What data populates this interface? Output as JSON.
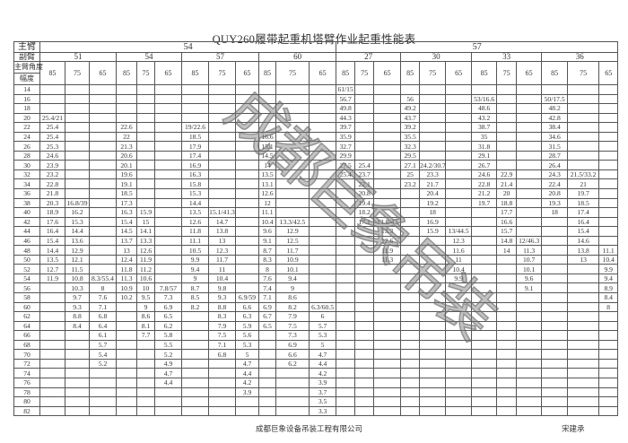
{
  "title": "QUY260履带起重机塔臂作业起重性能表",
  "header": {
    "main_boom_label": "主臂",
    "jib_label": "副臂",
    "angle_label": "主臂角度",
    "radius_label": "幅度",
    "main_booms": [
      {
        "length": "54",
        "jibs": [
          "51",
          "54",
          "57",
          "60"
        ]
      },
      {
        "length": "57",
        "jibs": [
          "27",
          "30",
          "33",
          "36"
        ]
      }
    ],
    "angles": [
      "85",
      "75",
      "65"
    ]
  },
  "rows": [
    {
      "r": "14",
      "v": [
        "",
        "",
        "",
        "",
        "",
        "",
        "",
        "",
        "",
        "",
        "",
        "",
        "61/15",
        "",
        "",
        "",
        "",
        "",
        "",
        "",
        "",
        "",
        "",
        ""
      ]
    },
    {
      "r": "16",
      "v": [
        "",
        "",
        "",
        "",
        "",
        "",
        "",
        "",
        "",
        "",
        "",
        "",
        "56.7",
        "",
        "",
        "56",
        "",
        "",
        "53/16.6",
        "",
        "",
        "50/17.5",
        "",
        ""
      ]
    },
    {
      "r": "18",
      "v": [
        "",
        "",
        "",
        "",
        "",
        "",
        "",
        "",
        "",
        "",
        "",
        "",
        "49.8",
        "",
        "",
        "49.2",
        "",
        "",
        "48.6",
        "",
        "",
        "48.2",
        "",
        ""
      ]
    },
    {
      "r": "20",
      "v": [
        "25.4/21",
        "",
        "",
        "",
        "",
        "",
        "",
        "",
        "",
        "",
        "",
        "",
        "44.3",
        "",
        "",
        "43.7",
        "",
        "",
        "43.2",
        "",
        "",
        "42.8",
        "",
        ""
      ]
    },
    {
      "r": "22",
      "v": [
        "25.4",
        "",
        "",
        "22.6",
        "",
        "",
        "19/22.6",
        "",
        "",
        "",
        "",
        "",
        "39.7",
        "",
        "",
        "39.2",
        "",
        "",
        "38.7",
        "",
        "",
        "38.4",
        "",
        ""
      ]
    },
    {
      "r": "24",
      "v": [
        "25.4",
        "",
        "",
        "22",
        "",
        "",
        "18.5",
        "",
        "",
        "16.6",
        "",
        "",
        "35.9",
        "",
        "",
        "35.5",
        "",
        "",
        "35",
        "",
        "",
        "34.6",
        "",
        ""
      ]
    },
    {
      "r": "26",
      "v": [
        "25.3",
        "",
        "",
        "21.3",
        "",
        "",
        "17.9",
        "",
        "",
        "15.1",
        "",
        "",
        "32.7",
        "",
        "",
        "32.3",
        "",
        "",
        "31.8",
        "",
        "",
        "31.5",
        "",
        ""
      ]
    },
    {
      "r": "28",
      "v": [
        "24.6",
        "",
        "",
        "20.6",
        "",
        "",
        "17.4",
        "",
        "",
        "14.5",
        "",
        "",
        "29.9",
        "",
        "",
        "29.5",
        "",
        "",
        "29.1",
        "",
        "",
        "28.7",
        "",
        ""
      ]
    },
    {
      "r": "30",
      "v": [
        "23.9",
        "",
        "",
        "20.1",
        "",
        "",
        "16.9",
        "",
        "",
        "14",
        "",
        "",
        "27.5",
        "25.4",
        "",
        "27.1",
        "24.2/30.7",
        "",
        "26.7",
        "",
        "",
        "26.4",
        "",
        ""
      ]
    },
    {
      "r": "32",
      "v": [
        "23.2",
        "",
        "",
        "19.6",
        "",
        "",
        "16.3",
        "",
        "",
        "13.5",
        "",
        "",
        "25.4",
        "23.7",
        "",
        "25",
        "23.3",
        "",
        "24.6",
        "22.9",
        "",
        "24.3",
        "21.5/33.2",
        ""
      ]
    },
    {
      "r": "34",
      "v": [
        "22.8",
        "",
        "",
        "19.1",
        "",
        "",
        "15.8",
        "",
        "",
        "13.1",
        "",
        "",
        "",
        "22.1",
        "",
        "23.2",
        "21.7",
        "",
        "22.8",
        "21.4",
        "",
        "22.4",
        "21",
        ""
      ]
    },
    {
      "r": "36",
      "v": [
        "21.8",
        "",
        "",
        "18.5",
        "",
        "",
        "15.3",
        "",
        "",
        "12.6",
        "",
        "",
        "",
        "20.8",
        "",
        "",
        "20.4",
        "",
        "21.2",
        "20",
        "",
        "20.8",
        "19.7",
        ""
      ]
    },
    {
      "r": "38",
      "v": [
        "20.3",
        "16.8/39",
        "",
        "17.3",
        "",
        "",
        "14.4",
        "",
        "",
        "12",
        "",
        "",
        "",
        "19.4",
        "",
        "",
        "19.2",
        "",
        "19.7",
        "18.8",
        "",
        "19.3",
        "18.5",
        ""
      ]
    },
    {
      "r": "40",
      "v": [
        "18.9",
        "16.2",
        "",
        "16.3",
        "15.9",
        "",
        "13.5",
        "15.1/41.3",
        "",
        "11.1",
        "",
        "",
        "",
        "18.2",
        "",
        "",
        "18",
        "",
        "",
        "17.7",
        "",
        "18",
        "17.4",
        ""
      ]
    },
    {
      "r": "42",
      "v": [
        "17.6",
        "15.3",
        "",
        "15.4",
        "15",
        "",
        "12.6",
        "14.7",
        "",
        "10.4",
        "13.3/42.5",
        "",
        "",
        "17.1",
        "13.8/43",
        "",
        "16.9",
        "",
        "",
        "16.6",
        "",
        "",
        "16.4",
        ""
      ]
    },
    {
      "r": "44",
      "v": [
        "16.4",
        "14.4",
        "",
        "14.5",
        "14.1",
        "",
        "11.8",
        "13.8",
        "",
        "9.6",
        "12.9",
        "",
        "",
        "",
        "13.3",
        "",
        "15.9",
        "13/44.5",
        "",
        "15.7",
        "",
        "",
        "15.4",
        ""
      ]
    },
    {
      "r": "46",
      "v": [
        "15.4",
        "13.6",
        "",
        "13.7",
        "13.3",
        "",
        "11.1",
        "13",
        "",
        "9.1",
        "12.5",
        "",
        "",
        "",
        "12.6",
        "",
        "",
        "12.3",
        "",
        "14.8",
        "12/46.3",
        "",
        "14.6",
        ""
      ]
    },
    {
      "r": "48",
      "v": [
        "14.4",
        "12.9",
        "",
        "13",
        "12.6",
        "",
        "10.5",
        "12.3",
        "",
        "8.7",
        "11.7",
        "",
        "",
        "",
        "11.9",
        "",
        "",
        "11.6",
        "",
        "14",
        "11.3",
        "",
        "13.8",
        "11.1"
      ]
    },
    {
      "r": "50",
      "v": [
        "13.5",
        "12.1",
        "",
        "12.4",
        "11.9",
        "",
        "9.9",
        "11.7",
        "",
        "8.3",
        "10.9",
        "",
        "",
        "",
        "11.3",
        "",
        "",
        "11",
        "",
        "",
        "10.7",
        "",
        "13",
        "10.4"
      ]
    },
    {
      "r": "52",
      "v": [
        "12.7",
        "11.5",
        "",
        "11.8",
        "11.2",
        "",
        "9.4",
        "11",
        "",
        "8",
        "10.1",
        "",
        "",
        "",
        "",
        "",
        "",
        "10.4",
        "",
        "",
        "10.1",
        "",
        "",
        "9.9"
      ]
    },
    {
      "r": "54",
      "v": [
        "11.9",
        "10.8",
        "8.3/55.4",
        "11.3",
        "10.6",
        "",
        "9",
        "10.4",
        "",
        "7.6",
        "9.4",
        "",
        "",
        "",
        "",
        "",
        "",
        "9.9",
        "",
        "",
        "9.6",
        "",
        "",
        "9.4"
      ]
    },
    {
      "r": "56",
      "v": [
        "",
        "10.3",
        "8",
        "10.9",
        "10",
        "7.8/57",
        "8.7",
        "9.8",
        "",
        "7.4",
        "9",
        "",
        "",
        "",
        "",
        "",
        "",
        "",
        "",
        "",
        "9.1",
        "",
        "",
        "8.9"
      ]
    },
    {
      "r": "58",
      "v": [
        "",
        "9.7",
        "7.6",
        "10.2",
        "9.5",
        "7.3",
        "8.5",
        "9.3",
        "6.9/59",
        "7.1",
        "8.6",
        "",
        "",
        "",
        "",
        "",
        "",
        "",
        "",
        "",
        "",
        "",
        "",
        "8.4"
      ]
    },
    {
      "r": "60",
      "v": [
        "",
        "9.3",
        "7.1",
        "",
        "9",
        "6.9",
        "8.2",
        "8.8",
        "6.6",
        "6.9",
        "8.2",
        "6.3/60.5",
        "",
        "",
        "",
        "",
        "",
        "",
        "",
        "",
        "",
        "",
        "",
        "8"
      ]
    },
    {
      "r": "62",
      "v": [
        "",
        "8.8",
        "6.8",
        "",
        "8.6",
        "6.5",
        "",
        "8.3",
        "6.3",
        "6.7",
        "7.9",
        "6",
        "",
        "",
        "",
        "",
        "",
        "",
        "",
        "",
        "",
        "",
        "",
        ""
      ]
    },
    {
      "r": "64",
      "v": [
        "",
        "8.4",
        "6.4",
        "",
        "8.1",
        "6.2",
        "",
        "7.9",
        "5.9",
        "6.5",
        "7.5",
        "5.7",
        "",
        "",
        "",
        "",
        "",
        "",
        "",
        "",
        "",
        "",
        "",
        ""
      ]
    },
    {
      "r": "66",
      "v": [
        "",
        "",
        "6.1",
        "",
        "7.7",
        "5.8",
        "",
        "7.5",
        "5.6",
        "",
        "7.3",
        "5.3",
        "",
        "",
        "",
        "",
        "",
        "",
        "",
        "",
        "",
        "",
        "",
        ""
      ]
    },
    {
      "r": "68",
      "v": [
        "",
        "",
        "5.7",
        "",
        "",
        "5.5",
        "",
        "7.1",
        "5.3",
        "",
        "6.9",
        "5",
        "",
        "",
        "",
        "",
        "",
        "",
        "",
        "",
        "",
        "",
        "",
        ""
      ]
    },
    {
      "r": "70",
      "v": [
        "",
        "",
        "5.4",
        "",
        "",
        "5.2",
        "",
        "6.8",
        "5",
        "",
        "6.6",
        "4.7",
        "",
        "",
        "",
        "",
        "",
        "",
        "",
        "",
        "",
        "",
        "",
        ""
      ]
    },
    {
      "r": "72",
      "v": [
        "",
        "",
        "5.2",
        "",
        "",
        "4.9",
        "",
        "",
        "4.7",
        "",
        "6.2",
        "4.4",
        "",
        "",
        "",
        "",
        "",
        "",
        "",
        "",
        "",
        "",
        "",
        ""
      ]
    },
    {
      "r": "74",
      "v": [
        "",
        "",
        "",
        "",
        "",
        "4.7",
        "",
        "",
        "4.4",
        "",
        "",
        "4.2",
        "",
        "",
        "",
        "",
        "",
        "",
        "",
        "",
        "",
        "",
        "",
        ""
      ]
    },
    {
      "r": "76",
      "v": [
        "",
        "",
        "",
        "",
        "",
        "4.4",
        "",
        "",
        "4.2",
        "",
        "",
        "3.9",
        "",
        "",
        "",
        "",
        "",
        "",
        "",
        "",
        "",
        "",
        "",
        ""
      ]
    },
    {
      "r": "78",
      "v": [
        "",
        "",
        "",
        "",
        "",
        "",
        "",
        "",
        "3.9",
        "",
        "",
        "3.7",
        "",
        "",
        "",
        "",
        "",
        "",
        "",
        "",
        "",
        "",
        "",
        ""
      ]
    },
    {
      "r": "80",
      "v": [
        "",
        "",
        "",
        "",
        "",
        "",
        "",
        "",
        "",
        "",
        "",
        "3.5",
        "",
        "",
        "",
        "",
        "",
        "",
        "",
        "",
        "",
        "",
        "",
        ""
      ]
    },
    {
      "r": "82",
      "v": [
        "",
        "",
        "",
        "",
        "",
        "",
        "",
        "",
        "",
        "",
        "",
        "3.3",
        "",
        "",
        "",
        "",
        "",
        "",
        "",
        "",
        "",
        "",
        "",
        ""
      ]
    }
  ],
  "watermark": "成都巨象吊装",
  "footer": {
    "company": "成都巨象设备吊装工程有限公司",
    "signature": "宋建承"
  }
}
